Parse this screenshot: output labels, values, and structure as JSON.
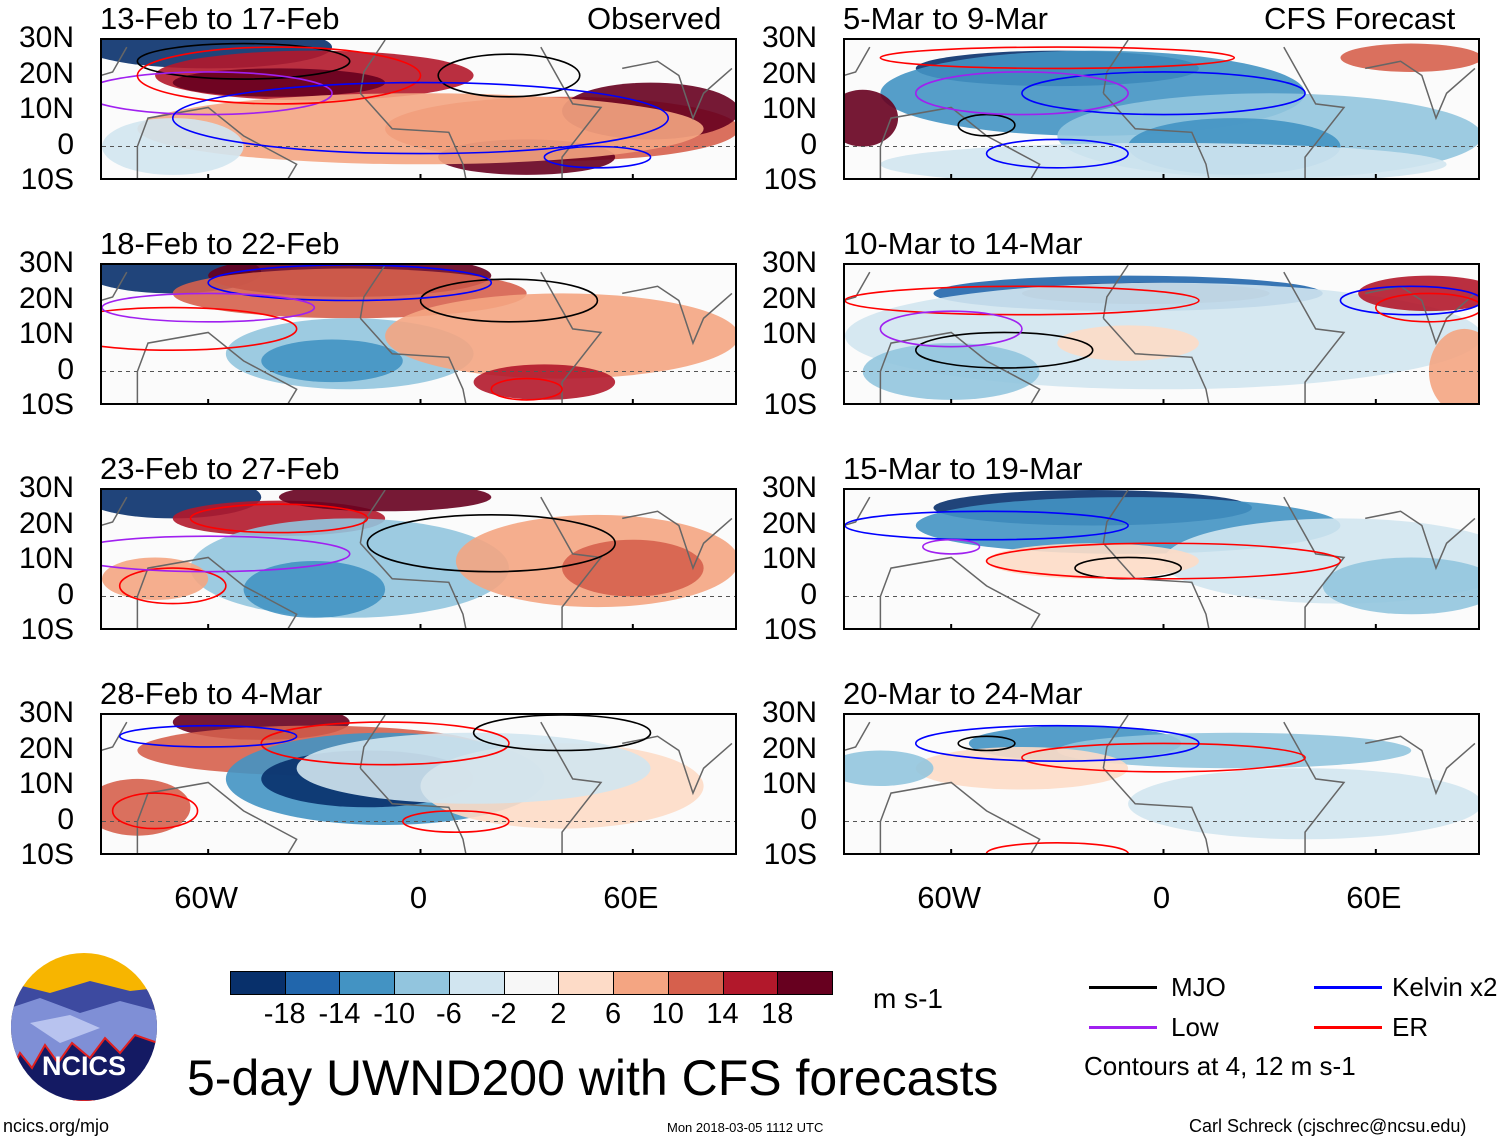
{
  "left_header": "Observed",
  "right_header": "CFS Forecast",
  "left_panels": [
    "13-Feb to 17-Feb",
    "18-Feb to 22-Feb",
    "23-Feb to 27-Feb",
    "28-Feb to 4-Mar"
  ],
  "right_panels": [
    "5-Mar to 9-Mar",
    "10-Mar to 14-Mar",
    "15-Mar to 19-Mar",
    "20-Mar to 24-Mar"
  ],
  "lat_labels": [
    "30N",
    "20N",
    "10N",
    "0",
    "10S"
  ],
  "lon_labels": [
    "60W",
    "0",
    "60E"
  ],
  "colorbar": {
    "colors": [
      "#08306b",
      "#2166ac",
      "#4393c3",
      "#92c5de",
      "#d1e5f0",
      "#f7f7f7",
      "#fddbc7",
      "#f4a582",
      "#d6604d",
      "#b2182b",
      "#67001f"
    ],
    "ticks": [
      "-18",
      "-14",
      "-10",
      "-6",
      "-2",
      "2",
      "6",
      "10",
      "14",
      "18"
    ],
    "units": "m s-1"
  },
  "legend": {
    "items": [
      {
        "label": "MJO",
        "color": "#000000"
      },
      {
        "label": "Kelvin x2",
        "color": "#0000ff"
      },
      {
        "label": "Low",
        "color": "#a020f0"
      },
      {
        "label": "ER",
        "color": "#ff0000"
      }
    ],
    "note": "Contours at 4, 12 m s-1"
  },
  "logo_text": "NCICS",
  "title": "5-day UWND200 with CFS forecasts",
  "footer": {
    "url": "ncics.org/mjo",
    "timestamp": "Mon 2018-03-05 1112 UTC",
    "author": "Carl Schreck (cjschrec@ncsu.edu)"
  }
}
